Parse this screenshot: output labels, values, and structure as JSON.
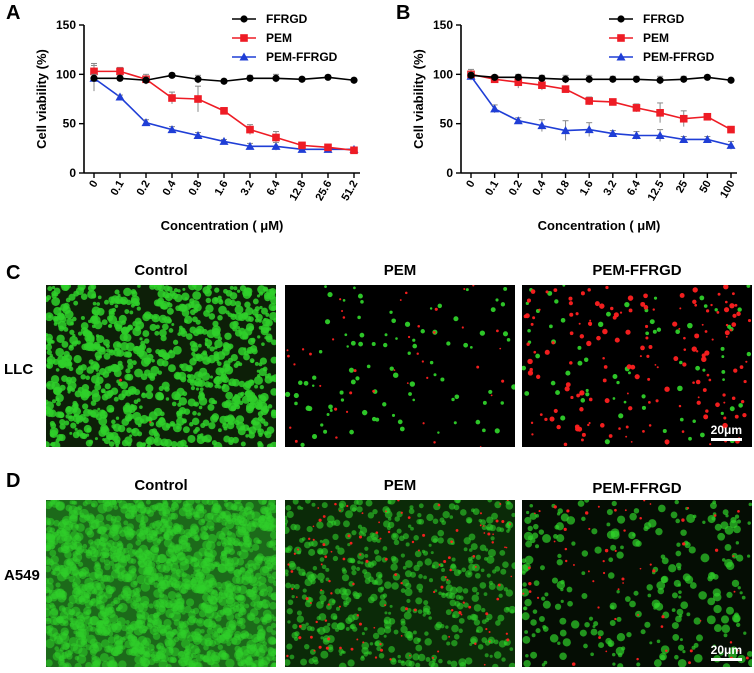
{
  "panels": {
    "A": "A",
    "B": "B",
    "C": "C",
    "D": "D"
  },
  "chart_data": [
    {
      "type": "line",
      "title": "",
      "xlabel": "Concentration ( μM)",
      "ylabel": "Cell viability (%)",
      "ylim": [
        0,
        150
      ],
      "yticks": [
        "0",
        "50",
        "100",
        "150"
      ],
      "categories": [
        "0",
        "0.1",
        "0.2",
        "0.4",
        "0.8",
        "1.6",
        "3.2",
        "6.4",
        "12.8",
        "25.6",
        "51.2"
      ],
      "legend_position": "top-right",
      "series": [
        {
          "name": "FFRGD",
          "color": "#000000",
          "marker": "circle",
          "values": [
            96,
            96,
            94,
            99,
            95,
            93,
            96,
            96,
            95,
            97,
            94
          ],
          "errors": [
            4,
            3,
            3,
            2,
            4,
            2,
            3,
            4,
            2,
            2,
            2
          ]
        },
        {
          "name": "PEM",
          "color": "#ee1c25",
          "marker": "square",
          "values": [
            103,
            103,
            95,
            76,
            75,
            63,
            44,
            36,
            28,
            26,
            23
          ],
          "errors": [
            8,
            4,
            5,
            6,
            13,
            3,
            5,
            6,
            2,
            2,
            2
          ]
        },
        {
          "name": "PEM-FFRGD",
          "color": "#1f3ed6",
          "marker": "triangle",
          "values": [
            96,
            77,
            51,
            44,
            38,
            32,
            27,
            27,
            24,
            24,
            24
          ],
          "errors": [
            13,
            2,
            3,
            3,
            3,
            2,
            3,
            4,
            2,
            2,
            2
          ]
        }
      ]
    },
    {
      "type": "line",
      "title": "",
      "xlabel": "Concentration ( μM)",
      "ylabel": "Cell viability (%)",
      "ylim": [
        0,
        150
      ],
      "yticks": [
        "0",
        "50",
        "100",
        "150"
      ],
      "categories": [
        "0",
        "0.1",
        "0.2",
        "0.4",
        "0.8",
        "1.6",
        "3.2",
        "6.4",
        "12.5",
        "25",
        "50",
        "100"
      ],
      "legend_position": "top-right",
      "series": [
        {
          "name": "FFRGD",
          "color": "#000000",
          "marker": "circle",
          "values": [
            99,
            97,
            97,
            96,
            95,
            95,
            95,
            95,
            94,
            95,
            97,
            94
          ],
          "errors": [
            3,
            2,
            3,
            3,
            4,
            4,
            3,
            3,
            4,
            3,
            2,
            2
          ]
        },
        {
          "name": "PEM",
          "color": "#ee1c25",
          "marker": "square",
          "values": [
            100,
            95,
            92,
            89,
            85,
            73,
            72,
            66,
            61,
            55,
            57,
            44
          ],
          "errors": [
            5,
            3,
            6,
            5,
            3,
            4,
            3,
            4,
            10,
            8,
            3,
            3
          ]
        },
        {
          "name": "PEM-FFRGD",
          "color": "#1f3ed6",
          "marker": "triangle",
          "values": [
            98,
            65,
            53,
            48,
            43,
            44,
            40,
            38,
            38,
            34,
            34,
            28
          ],
          "errors": [
            4,
            4,
            3,
            6,
            10,
            7,
            3,
            4,
            6,
            3,
            3,
            4
          ]
        }
      ]
    }
  ],
  "micrographs": {
    "columns": [
      "Control",
      "PEM",
      "PEM-FFRGD"
    ],
    "rows": [
      {
        "label": "LLC",
        "scalebar": "20μm"
      },
      {
        "label": "A549",
        "scalebar": "20μm"
      }
    ],
    "colors": {
      "live": "#2fd02a",
      "dead": "#ff2020",
      "background": "#000000"
    }
  }
}
